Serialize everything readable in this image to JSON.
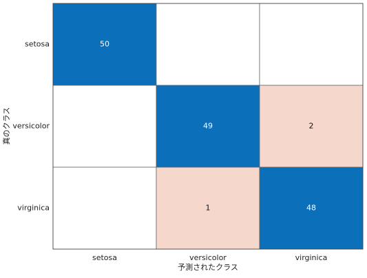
{
  "chart_data": {
    "type": "confusion_matrix",
    "xlabel": "予測されたクラス",
    "ylabel": "真のクラス",
    "row_labels": [
      "setosa",
      "versicolor",
      "virginica"
    ],
    "column_labels": [
      "setosa",
      "versicolor",
      "virginica"
    ],
    "values": [
      [
        50,
        null,
        null
      ],
      [
        null,
        49,
        2
      ],
      [
        null,
        1,
        48
      ]
    ],
    "diagonal_color": "#0b6fba",
    "off_diagonal_color": "#f6d7cb"
  }
}
